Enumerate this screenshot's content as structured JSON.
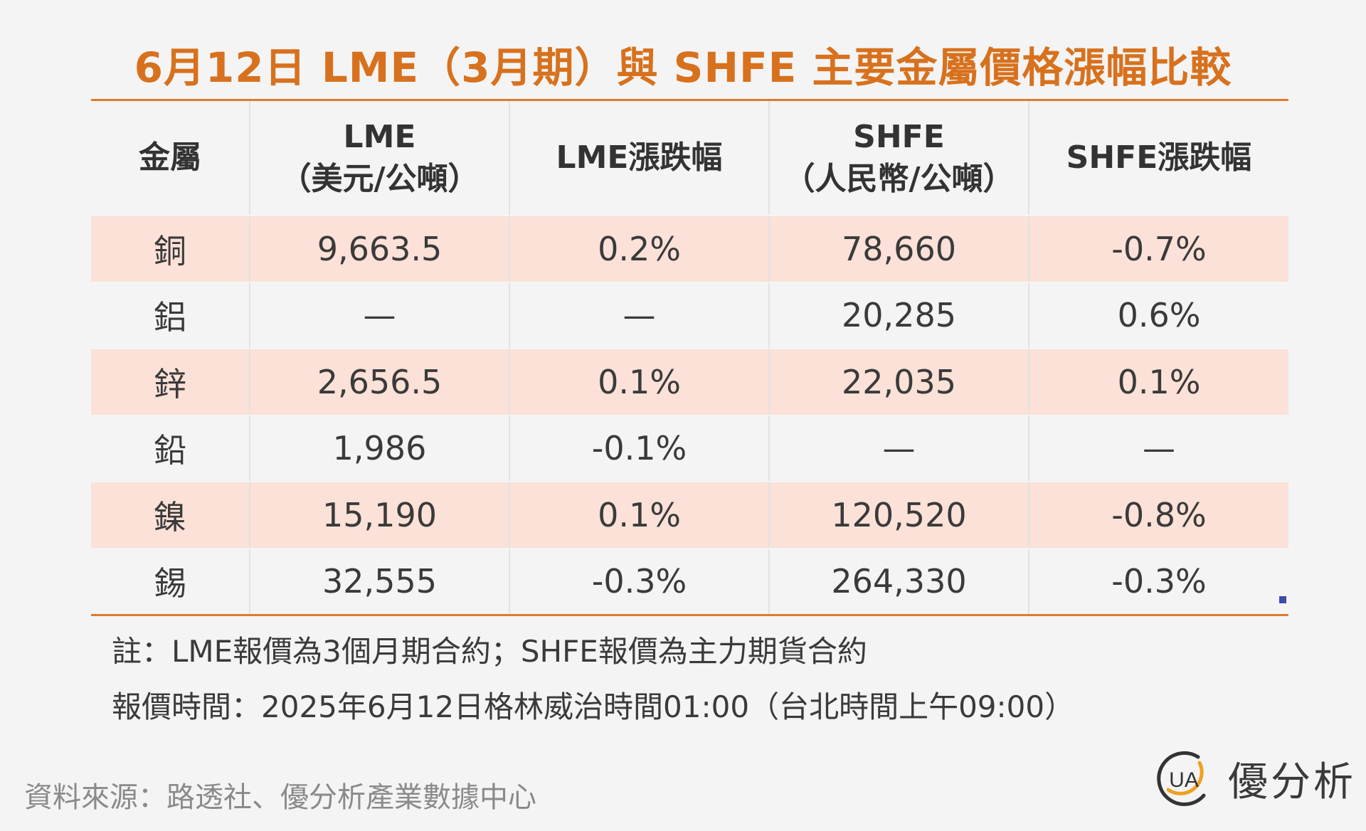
{
  "title": "6月12日 LME（3月期）與 SHFE 主要金屬價格漲幅比較",
  "table": {
    "headers": [
      {
        "line1": "金屬",
        "line2": ""
      },
      {
        "line1": "LME",
        "line2": "（美元/公噸）"
      },
      {
        "line1": "LME漲跌幅",
        "line2": ""
      },
      {
        "line1": "SHFE",
        "line2": "（人民幣/公噸）"
      },
      {
        "line1": "SHFE漲跌幅",
        "line2": ""
      }
    ],
    "rows": [
      {
        "metal": "銅",
        "lme": "9,663.5",
        "lme_change": "0.2%",
        "shfe": "78,660",
        "shfe_change": "-0.7%"
      },
      {
        "metal": "鋁",
        "lme": "—",
        "lme_change": "—",
        "shfe": "20,285",
        "shfe_change": "0.6%"
      },
      {
        "metal": "鋅",
        "lme": "2,656.5",
        "lme_change": "0.1%",
        "shfe": "22,035",
        "shfe_change": "0.1%"
      },
      {
        "metal": "鉛",
        "lme": "1,986",
        "lme_change": "-0.1%",
        "shfe": "—",
        "shfe_change": "—"
      },
      {
        "metal": "鎳",
        "lme": "15,190",
        "lme_change": "0.1%",
        "shfe": "120,520",
        "shfe_change": "-0.8%"
      },
      {
        "metal": "錫",
        "lme": "32,555",
        "lme_change": "-0.3%",
        "shfe": "264,330",
        "shfe_change": "-0.3%"
      }
    ]
  },
  "notes": {
    "note1": "註：LME報價為3個月期合約；SHFE報價為主力期貨合約",
    "note2": "報價時間：2025年6月12日格林威治時間01:00（台北時間上午09:00）"
  },
  "source": "資料來源：路透社、優分析產業數據中心",
  "logo": {
    "mark_text": "UA",
    "name": "優分析"
  },
  "colors": {
    "title": "#d8711d",
    "rule": "#e07a2e",
    "row_shade": "#fbe1d7",
    "background": "#f4f4f4",
    "logo_accent": "#f0a020"
  }
}
